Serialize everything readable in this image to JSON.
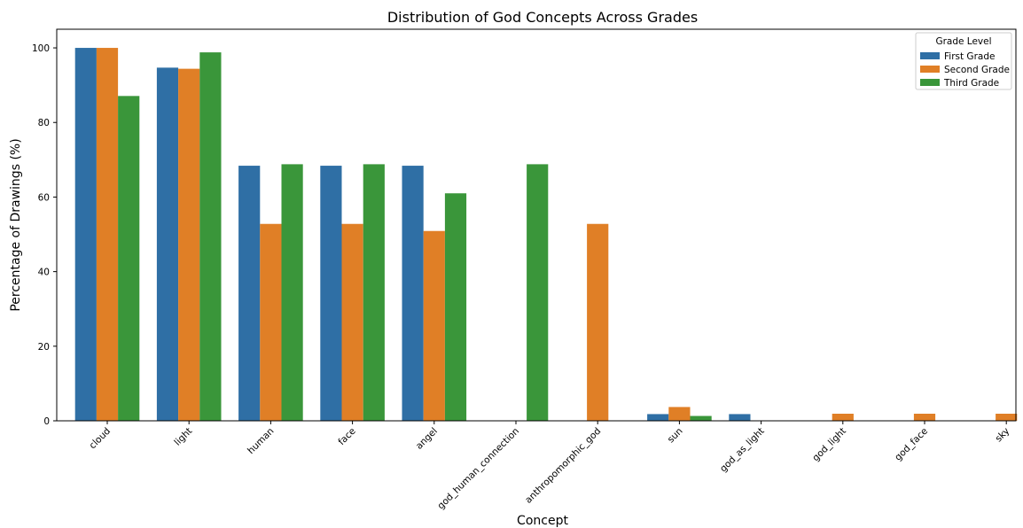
{
  "chart_data": {
    "type": "bar",
    "title": "Distribution of God Concepts Across Grades",
    "xlabel": "Concept",
    "ylabel": "Percentage of Drawings (%)",
    "ylim": [
      0,
      105
    ],
    "yticks": [
      0,
      20,
      40,
      60,
      80,
      100
    ],
    "grid": false,
    "legend": {
      "title": "Grade Level",
      "placement": "top-right"
    },
    "categories": [
      "cloud",
      "light",
      "human",
      "face",
      "angel",
      "god_human_connection",
      "anthropomorphic_god",
      "sun",
      "god_as_light",
      "god_light",
      "god_face",
      "sky"
    ],
    "series": [
      {
        "name": "First Grade",
        "color": "#2f6fa5",
        "values": [
          100,
          94.7,
          68.4,
          68.4,
          68.4,
          0,
          0,
          1.8,
          1.8,
          0,
          0,
          0
        ]
      },
      {
        "name": "Second Grade",
        "color": "#e07f26",
        "values": [
          100,
          94.4,
          52.8,
          52.8,
          50.9,
          0,
          52.8,
          3.7,
          0,
          1.9,
          1.9,
          1.9
        ]
      },
      {
        "name": "Third Grade",
        "color": "#3a963a",
        "values": [
          87.1,
          98.8,
          68.8,
          68.8,
          61.0,
          68.8,
          0,
          1.3,
          0,
          0,
          0,
          0
        ]
      }
    ]
  }
}
